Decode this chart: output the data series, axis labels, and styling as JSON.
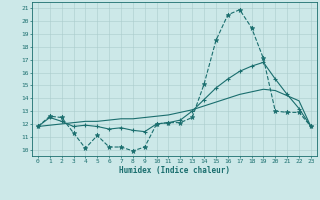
{
  "xlabel": "Humidex (Indice chaleur)",
  "bg_color": "#cce8e8",
  "grid_color": "#aacccc",
  "line_color": "#1a6e6e",
  "xlim": [
    -0.5,
    23.5
  ],
  "ylim": [
    9.5,
    21.5
  ],
  "yticks": [
    10,
    11,
    12,
    13,
    14,
    15,
    16,
    17,
    18,
    19,
    20,
    21
  ],
  "xticks": [
    0,
    1,
    2,
    3,
    4,
    5,
    6,
    7,
    8,
    9,
    10,
    11,
    12,
    13,
    14,
    15,
    16,
    17,
    18,
    19,
    20,
    21,
    22,
    23
  ],
  "line1_x": [
    0,
    1,
    2,
    3,
    4,
    5,
    6,
    7,
    8,
    9,
    10,
    11,
    12,
    13,
    14,
    15,
    16,
    17,
    18,
    19,
    20,
    21,
    22,
    23
  ],
  "line1_y": [
    11.8,
    12.6,
    12.5,
    11.3,
    10.1,
    11.1,
    10.2,
    10.2,
    9.9,
    10.2,
    12.0,
    12.1,
    12.1,
    12.5,
    15.1,
    18.5,
    20.5,
    20.9,
    19.5,
    17.1,
    13.0,
    12.9,
    12.9,
    11.8
  ],
  "line2_x": [
    0,
    1,
    2,
    3,
    4,
    5,
    6,
    7,
    8,
    9,
    10,
    11,
    12,
    13,
    14,
    15,
    16,
    17,
    18,
    19,
    20,
    21,
    22,
    23
  ],
  "line2_y": [
    11.8,
    12.5,
    12.2,
    11.8,
    11.9,
    11.8,
    11.6,
    11.7,
    11.5,
    11.4,
    12.0,
    12.1,
    12.3,
    13.0,
    13.9,
    14.8,
    15.5,
    16.1,
    16.5,
    16.8,
    15.5,
    14.3,
    13.2,
    11.8
  ],
  "line3_x": [
    0,
    1,
    2,
    3,
    4,
    5,
    6,
    7,
    8,
    9,
    10,
    11,
    12,
    13,
    14,
    15,
    16,
    17,
    18,
    19,
    20,
    21,
    22,
    23
  ],
  "line3_y": [
    11.8,
    11.9,
    12.0,
    12.1,
    12.2,
    12.2,
    12.3,
    12.4,
    12.4,
    12.5,
    12.6,
    12.7,
    12.9,
    13.1,
    13.4,
    13.7,
    14.0,
    14.3,
    14.5,
    14.7,
    14.6,
    14.2,
    13.8,
    11.8
  ]
}
